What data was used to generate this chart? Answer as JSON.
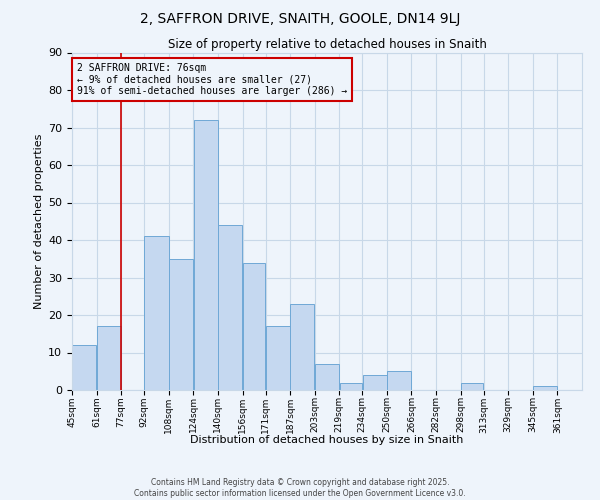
{
  "title": "2, SAFFRON DRIVE, SNAITH, GOOLE, DN14 9LJ",
  "subtitle": "Size of property relative to detached houses in Snaith",
  "xlabel": "Distribution of detached houses by size in Snaith",
  "ylabel": "Number of detached properties",
  "bar_left_edges": [
    45,
    61,
    77,
    92,
    108,
    124,
    140,
    156,
    171,
    187,
    203,
    219,
    234,
    250,
    266,
    282,
    298,
    313,
    329,
    345
  ],
  "bar_widths": [
    16,
    16,
    15,
    16,
    16,
    16,
    16,
    15,
    16,
    16,
    16,
    15,
    16,
    16,
    16,
    16,
    15,
    16,
    16,
    16
  ],
  "bar_heights": [
    12,
    17,
    0,
    41,
    35,
    72,
    44,
    34,
    17,
    23,
    7,
    2,
    4,
    5,
    0,
    0,
    2,
    0,
    0,
    1
  ],
  "tick_labels": [
    "45sqm",
    "61sqm",
    "77sqm",
    "92sqm",
    "108sqm",
    "124sqm",
    "140sqm",
    "156sqm",
    "171sqm",
    "187sqm",
    "203sqm",
    "219sqm",
    "234sqm",
    "250sqm",
    "266sqm",
    "282sqm",
    "298sqm",
    "313sqm",
    "329sqm",
    "345sqm",
    "361sqm"
  ],
  "bar_color": "#c5d8f0",
  "bar_edge_color": "#6fa8d6",
  "grid_color": "#c8d8e8",
  "bg_color": "#eef4fb",
  "vline_x": 77,
  "vline_color": "#cc0000",
  "annotation_text": "2 SAFFRON DRIVE: 76sqm\n← 9% of detached houses are smaller (27)\n91% of semi-detached houses are larger (286) →",
  "annotation_box_color": "#cc0000",
  "ylim": [
    0,
    90
  ],
  "yticks": [
    0,
    10,
    20,
    30,
    40,
    50,
    60,
    70,
    80,
    90
  ],
  "footer1": "Contains HM Land Registry data © Crown copyright and database right 2025.",
  "footer2": "Contains public sector information licensed under the Open Government Licence v3.0."
}
